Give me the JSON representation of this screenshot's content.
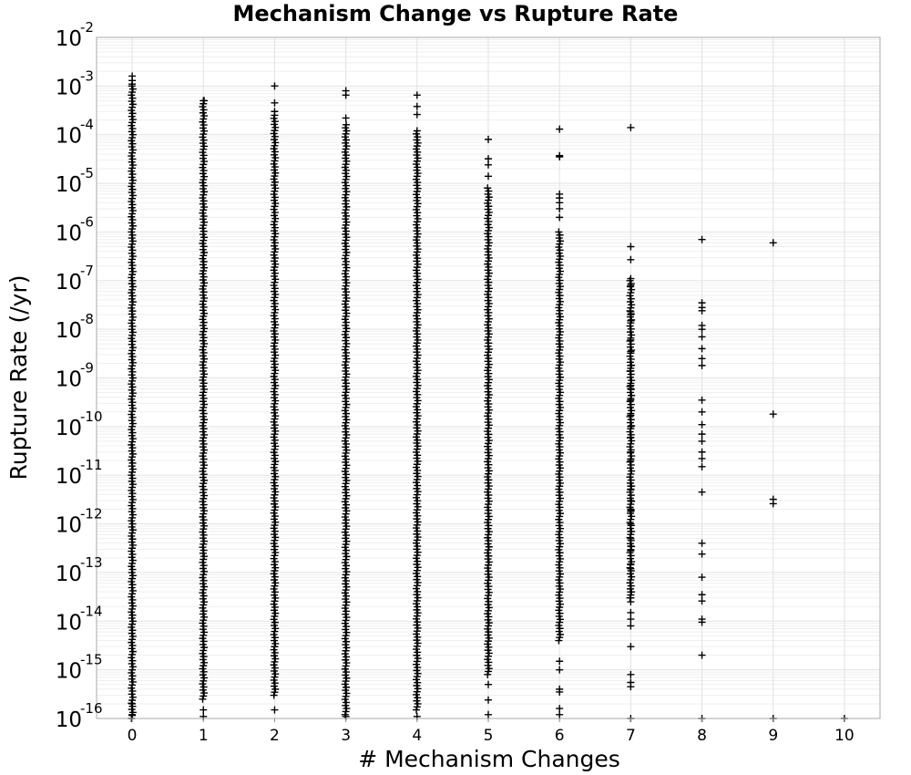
{
  "chart_data": {
    "type": "scatter",
    "title": "Mechanism Change vs Rupture Rate",
    "xlabel": "# Mechanism Changes",
    "ylabel": "Rupture Rate (/yr)",
    "x_ticks": [
      "0",
      "1",
      "2",
      "3",
      "4",
      "5",
      "6",
      "7",
      "8",
      "9",
      "10"
    ],
    "xlim": [
      -0.5,
      10.5
    ],
    "y_scale": "log",
    "ylim": [
      1e-16,
      0.01
    ],
    "y_tick_base": "10",
    "y_tick_exponents": [
      "-16",
      "-15",
      "-14",
      "-13",
      "-12",
      "-11",
      "-10",
      "-9",
      "-8",
      "-7",
      "-6",
      "-5",
      "-4",
      "-3",
      "-2"
    ],
    "grid": true,
    "marker": "plus",
    "marker_color": "#000000",
    "columns": [
      {
        "x": 0,
        "dense_range": [
          1e-16,
          0.001
        ],
        "points": [
          0.0016,
          0.0013,
          0.0011,
          2e-16,
          1.2e-16
        ]
      },
      {
        "x": 1,
        "dense_range": [
          2.5e-16,
          0.0005
        ],
        "points": [
          0.0005,
          1.5e-16,
          1.1e-16
        ]
      },
      {
        "x": 2,
        "dense_range": [
          3e-16,
          0.00025
        ],
        "points": [
          0.001,
          0.00045,
          0.0003,
          1.5e-16
        ]
      },
      {
        "x": 3,
        "dense_range": [
          1.2e-16,
          0.00016
        ],
        "points": [
          0.0008,
          0.00065,
          0.00022,
          1.1e-16
        ]
      },
      {
        "x": 4,
        "dense_range": [
          1.5e-16,
          0.00012
        ],
        "points": [
          0.00065,
          0.00038,
          0.00026,
          1.1e-16
        ]
      },
      {
        "x": 5,
        "dense_range": [
          8e-16,
          8e-06
        ],
        "points": [
          8e-05,
          3.2e-05,
          2.4e-05,
          1.4e-05,
          1.2e-16,
          2.4e-16,
          5e-16
        ]
      },
      {
        "x": 6,
        "dense_range": [
          4e-15,
          1e-06
        ],
        "points": [
          0.00013,
          3.7e-05,
          3.5e-05,
          6e-06,
          5e-06,
          4e-06,
          3e-06,
          2e-06,
          1.2e-16,
          1.6e-16,
          3.5e-16,
          4e-16,
          1e-15,
          1.5e-15
        ]
      },
      {
        "x": 7,
        "dense_range": [
          3e-14,
          1e-07
        ],
        "points": [
          0.00014,
          5e-07,
          2.7e-07,
          1.1e-07,
          8e-08,
          2.3e-08,
          2e-08,
          1.5e-08,
          6e-09,
          3.5e-09,
          1.8e-09,
          1.4e-09,
          7e-10,
          6e-10,
          3.5e-10,
          1.7e-10,
          1e-10,
          6e-11,
          3e-11,
          2e-11,
          6e-12,
          5e-12,
          3e-12,
          2e-12,
          1.8e-12,
          1e-12,
          7e-13,
          5e-13,
          3.5e-13,
          2.8e-13,
          1.5e-13,
          1.2e-13,
          4e-14,
          3e-14,
          2.5e-14,
          1.5e-14,
          1.1e-14,
          8e-15,
          3e-15,
          8e-16,
          5.5e-16,
          4.5e-16,
          1e-16
        ]
      },
      {
        "x": 8,
        "dense_range": null,
        "points": [
          7e-07,
          3.5e-08,
          2.8e-08,
          2.4e-08,
          1.2e-08,
          1e-08,
          7e-09,
          4e-09,
          2.5e-09,
          1.8e-09,
          3.5e-10,
          2e-10,
          1.1e-10,
          7e-11,
          5e-11,
          3e-11,
          2.2e-11,
          1.5e-11,
          4.5e-12,
          4e-13,
          2.4e-13,
          8e-14,
          3.5e-14,
          2.6e-14,
          1.1e-14,
          9.5e-15,
          2e-15,
          1e-16
        ]
      },
      {
        "x": 9,
        "dense_range": null,
        "points": [
          6e-07,
          1.8e-10,
          3.2e-12,
          2.6e-12,
          1e-16
        ]
      },
      {
        "x": 10,
        "dense_range": null,
        "points": [
          1e-16
        ]
      }
    ]
  }
}
